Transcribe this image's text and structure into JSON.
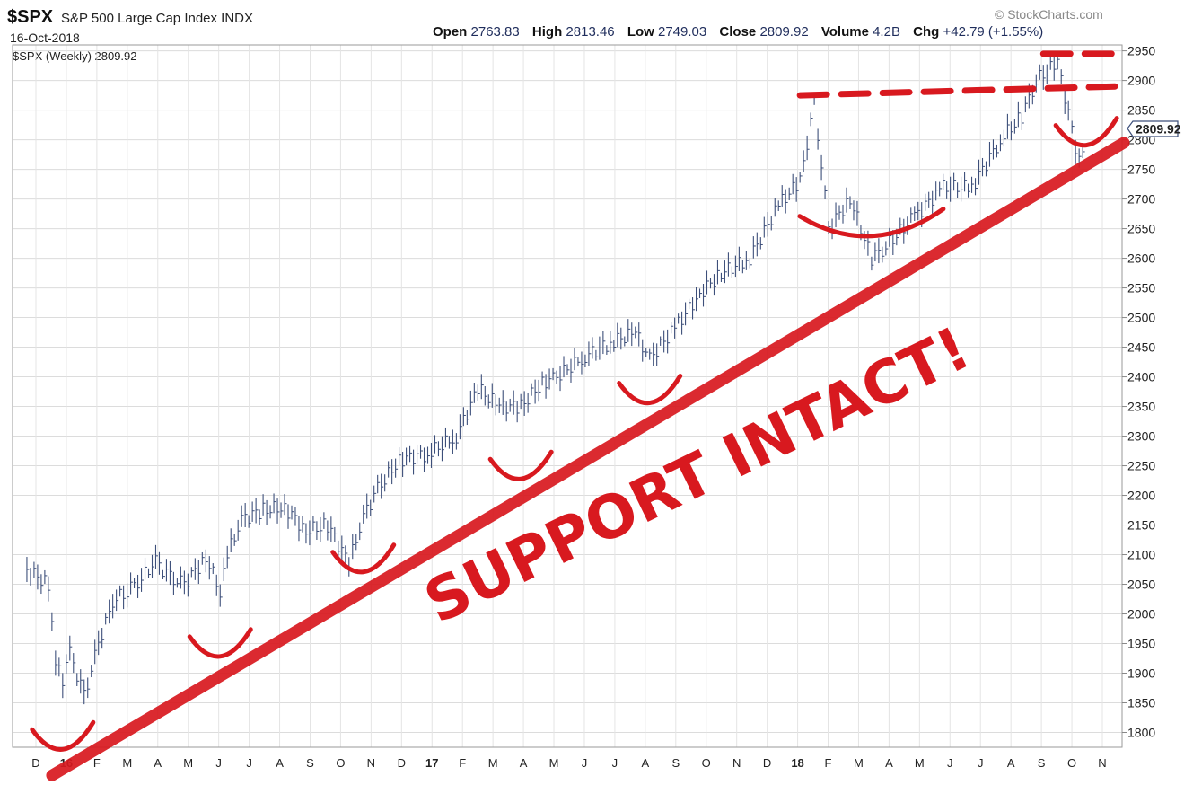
{
  "header": {
    "ticker": "$SPX",
    "index_name": "S&P 500 Large Cap Index INDX",
    "date": "16-Oct-2018",
    "watermark": "© StockCharts.com",
    "legend": "$SPX (Weekly) 2809.92",
    "stats": {
      "open_label": "Open",
      "open": "2763.83",
      "high_label": "High",
      "high": "2813.46",
      "low_label": "Low",
      "low": "2749.03",
      "close_label": "Close",
      "close": "2809.92",
      "volume_label": "Volume",
      "volume": "4.2B",
      "chg_label": "Chg",
      "chg": "+42.79 (+1.55%)"
    }
  },
  "chart_data": {
    "type": "line",
    "title": "$SPX S&P 500 Large Cap Index INDX",
    "series": [
      {
        "name": "$SPX (Weekly) 2809.92",
        "style": "ohlc-weekly-bars",
        "color": "#3d4f7a",
        "x": [
          "2015-12-14",
          "2016-01-04",
          "2016-01-11",
          "2016-01-18",
          "2016-01-25",
          "2016-02-08",
          "2016-02-22",
          "2016-03-07",
          "2016-03-21",
          "2016-04-04",
          "2016-04-18",
          "2016-05-02",
          "2016-05-16",
          "2016-06-06",
          "2016-06-20",
          "2016-06-27",
          "2016-07-11",
          "2016-08-01",
          "2016-08-22",
          "2016-09-12",
          "2016-10-03",
          "2016-10-24",
          "2016-11-07",
          "2016-11-21",
          "2016-12-12",
          "2017-01-09",
          "2017-02-06",
          "2017-02-27",
          "2017-03-20",
          "2017-04-10",
          "2017-05-01",
          "2017-05-15",
          "2017-06-12",
          "2017-07-10",
          "2017-07-31",
          "2017-08-14",
          "2017-09-11",
          "2017-10-02",
          "2017-10-23",
          "2017-11-20",
          "2017-12-18",
          "2018-01-08",
          "2018-01-22",
          "2018-02-05",
          "2018-02-26",
          "2018-03-19",
          "2018-04-02",
          "2018-04-30",
          "2018-05-28",
          "2018-06-25",
          "2018-07-23",
          "2018-08-13",
          "2018-08-27",
          "2018-09-17",
          "2018-10-08",
          "2018-10-15"
        ],
        "y": [
          2075,
          2050,
          1925,
          1880,
          1935,
          1860,
          1950,
          2020,
          2040,
          2060,
          2090,
          2060,
          2050,
          2095,
          2040,
          2100,
          2160,
          2175,
          2180,
          2140,
          2150,
          2085,
          2165,
          2210,
          2260,
          2270,
          2300,
          2380,
          2350,
          2350,
          2390,
          2400,
          2435,
          2460,
          2475,
          2430,
          2490,
          2540,
          2575,
          2600,
          2690,
          2730,
          2860,
          2650,
          2700,
          2600,
          2620,
          2670,
          2720,
          2720,
          2800,
          2840,
          2900,
          2930,
          2760,
          2810
        ]
      }
    ],
    "xlabel": "",
    "ylabel": "",
    "ylim": [
      1775,
      2960
    ],
    "y_ticks": [
      1800,
      1850,
      1900,
      1950,
      2000,
      2050,
      2100,
      2150,
      2200,
      2250,
      2300,
      2350,
      2400,
      2450,
      2500,
      2550,
      2600,
      2650,
      2700,
      2750,
      2800,
      2850,
      2900,
      2950
    ],
    "x_ticks": [
      "D",
      "16",
      "F",
      "M",
      "A",
      "M",
      "J",
      "J",
      "A",
      "S",
      "O",
      "N",
      "D",
      "17",
      "F",
      "M",
      "A",
      "M",
      "J",
      "J",
      "A",
      "S",
      "O",
      "N",
      "D",
      "18",
      "F",
      "M",
      "A",
      "M",
      "J",
      "J",
      "A",
      "S",
      "O",
      "N"
    ],
    "last_value_label": "2809.92",
    "grid": true,
    "annotations": {
      "text": "SUPPORT INTACT!",
      "trendline": {
        "from": [
          "2015-12-14",
          1770
        ],
        "to": [
          "2018-11-12",
          2795
        ]
      },
      "resistance": [
        {
          "from": [
            "2018-01-08",
            2875
          ],
          "to": [
            "2018-11-12",
            2890
          ]
        },
        {
          "from": [
            "2018-09-03",
            2945
          ],
          "to": [
            "2018-11-12",
            2945
          ]
        }
      ],
      "support_arcs": [
        "2016-01-18",
        "2016-06-20",
        "2016-11-07",
        "2017-04-10",
        "2017-08-14",
        "2018-03-19",
        "2018-10-15"
      ]
    }
  }
}
